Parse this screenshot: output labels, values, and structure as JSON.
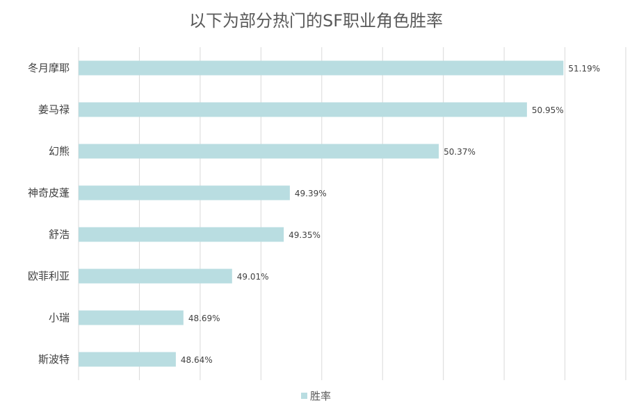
{
  "chart_data": {
    "type": "bar",
    "orientation": "horizontal",
    "title": "以下为部分热门的SF职业角色胜率",
    "categories": [
      "冬月摩耶",
      "姜马禄",
      "幻熊",
      "神奇皮蓬",
      "舒浩",
      "欧菲利亚",
      "小瑞",
      "斯波特"
    ],
    "series": [
      {
        "name": "胜率",
        "values": [
          51.19,
          50.95,
          50.37,
          49.39,
          49.35,
          49.01,
          48.69,
          48.64
        ],
        "labels": [
          "51.19%",
          "50.95%",
          "50.37%",
          "49.39%",
          "49.35%",
          "49.01%",
          "48.69%",
          "48.64%"
        ],
        "color": "#b9dde1"
      }
    ],
    "xlim": [
      48.0,
      51.6
    ],
    "gridlines": true,
    "legend": "bottom-center"
  }
}
